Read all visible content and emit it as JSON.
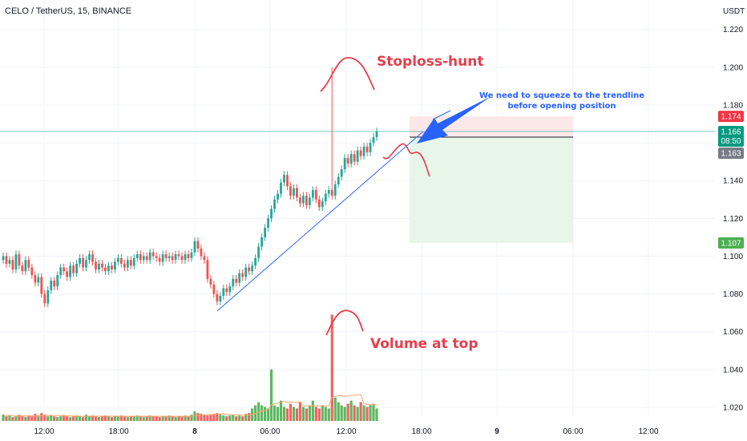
{
  "header": {
    "title": "CELO / TetherUS, 15, BINANCE",
    "currency": "USDT"
  },
  "price_tags": {
    "stop": "1.174",
    "last": "1.166",
    "countdown": "08:50",
    "entry": "1.163",
    "target": "1.107"
  },
  "annotations": {
    "stoploss": "Stoploss-hunt",
    "volume": "Volume at top",
    "note_line1": "We need to squeeze to the trendline",
    "note_line2": "before opening position"
  },
  "colors": {
    "up": "#26a69a",
    "down": "#ef5350",
    "vol_up": "#4caf50",
    "vol_down": "#ef5350",
    "trendline": "#2962ff",
    "annotation": "#e53e4c",
    "stop_zone": "#fce8e8",
    "target_zone": "#e8f5e9",
    "tag_stop": "#f23645",
    "tag_last": "#089981",
    "tag_entry": "#787b86",
    "tag_target": "#4caf50"
  },
  "chart_data": {
    "type": "candlestick",
    "title": "CELO / TetherUS, 15, BINANCE",
    "ylim": [
      1.012,
      1.232
    ],
    "yticks": [
      "1.020",
      "1.040",
      "1.060",
      "1.080",
      "1.100",
      "1.120",
      "1.140",
      "1.160",
      "1.180",
      "1.200",
      "1.220"
    ],
    "xticks": [
      "12:00",
      "18:00",
      "8",
      "06:00",
      "12:00",
      "18:00",
      "9",
      "06:00",
      "12:00"
    ],
    "y_unit": "USDT",
    "position": {
      "stop": 1.174,
      "entry": 1.163,
      "target": 1.107,
      "last": 1.166
    },
    "trendline": {
      "from": 1.071,
      "to": 1.166
    },
    "closes": [
      1.1,
      1.096,
      1.098,
      1.093,
      1.101,
      1.095,
      1.092,
      1.098,
      1.094,
      1.09,
      1.086,
      1.089,
      1.08,
      1.075,
      1.082,
      1.087,
      1.084,
      1.09,
      1.094,
      1.092,
      1.089,
      1.095,
      1.091,
      1.096,
      1.099,
      1.094,
      1.098,
      1.101,
      1.097,
      1.093,
      1.096,
      1.094,
      1.092,
      1.095,
      1.093,
      1.097,
      1.099,
      1.096,
      1.094,
      1.098,
      1.095,
      1.099,
      1.101,
      1.098,
      1.1,
      1.098,
      1.102,
      1.1,
      1.099,
      1.097,
      1.101,
      1.099,
      1.1,
      1.098,
      1.101,
      1.1,
      1.098,
      1.101,
      1.099,
      1.102,
      1.108,
      1.104,
      1.1,
      1.098,
      1.088,
      1.085,
      1.08,
      1.076,
      1.079,
      1.083,
      1.081,
      1.084,
      1.088,
      1.086,
      1.091,
      1.089,
      1.094,
      1.092,
      1.095,
      1.099,
      1.105,
      1.11,
      1.115,
      1.12,
      1.125,
      1.13,
      1.133,
      1.139,
      1.143,
      1.137,
      1.132,
      1.136,
      1.131,
      1.128,
      1.132,
      1.127,
      1.131,
      1.135,
      1.13,
      1.126,
      1.129,
      1.133,
      1.135,
      1.132,
      1.138,
      1.142,
      1.146,
      1.152,
      1.149,
      1.154,
      1.15,
      1.156,
      1.153,
      1.158,
      1.155,
      1.16,
      1.163,
      1.166
    ],
    "volumes": [
      0.4,
      0.3,
      0.35,
      0.25,
      0.3,
      0.4,
      0.3,
      0.25,
      0.35,
      0.3,
      0.45,
      0.3,
      0.5,
      0.4,
      0.3,
      0.35,
      0.3,
      0.25,
      0.3,
      0.35,
      0.3,
      0.25,
      0.3,
      0.35,
      0.3,
      0.25,
      0.4,
      0.3,
      0.35,
      0.3,
      0.25,
      0.3,
      0.35,
      0.3,
      0.25,
      0.3,
      0.3,
      0.35,
      0.3,
      0.25,
      0.3,
      0.3,
      0.35,
      0.3,
      0.25,
      0.3,
      0.35,
      0.3,
      0.3,
      0.25,
      0.3,
      0.3,
      0.35,
      0.3,
      0.25,
      0.3,
      0.3,
      0.35,
      0.3,
      0.4,
      0.6,
      0.5,
      0.45,
      0.4,
      0.35,
      0.4,
      0.45,
      0.5,
      0.4,
      0.35,
      0.3,
      0.35,
      0.4,
      0.3,
      0.35,
      0.3,
      0.45,
      0.5,
      0.8,
      1.0,
      1.2,
      1.0,
      0.9,
      0.8,
      3.3,
      1.0,
      0.9,
      1.3,
      0.9,
      0.8,
      1.1,
      0.9,
      0.8,
      1.2,
      0.9,
      0.8,
      1.0,
      1.3,
      0.9,
      0.8,
      1.0,
      0.9,
      0.8,
      6.8,
      1.5,
      1.2,
      1.0,
      0.9,
      1.1,
      1.3,
      1.0,
      0.9,
      1.2,
      1.0,
      0.9,
      1.0,
      1.1,
      0.8
    ]
  }
}
